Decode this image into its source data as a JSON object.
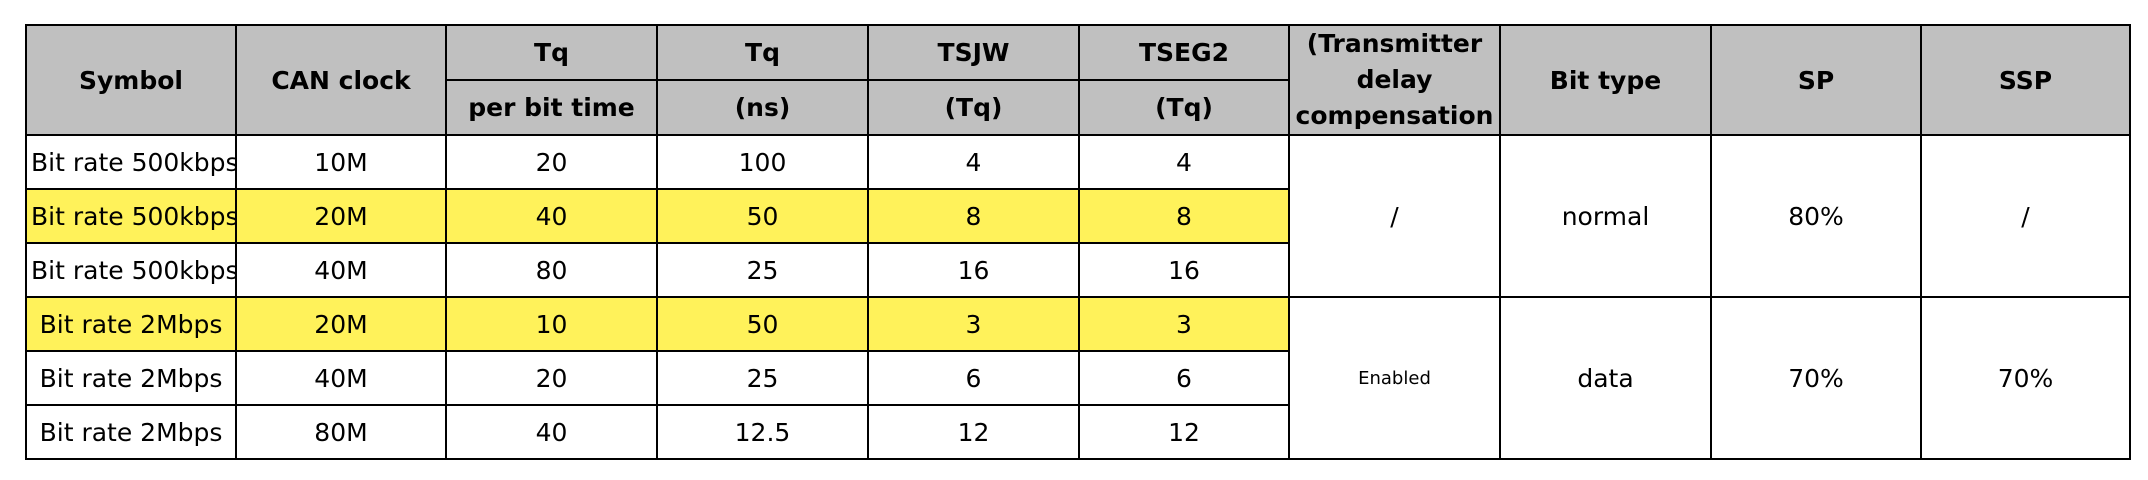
{
  "header": {
    "symbol": "Symbol",
    "can_clock": "CAN clock",
    "tq_top": "Tq",
    "tq_bottom": "per bit time",
    "tqns_top": "Tq",
    "tqns_bottom": "(ns)",
    "tsjw_top": "TSJW",
    "tsjw_bottom": "(Tq)",
    "tseg2_top": "TSEG2",
    "tseg2_bottom": "(Tq)",
    "tdc_line1": "(Transmitter",
    "tdc_line2": "delay",
    "tdc_line3": "compensation",
    "bit_type": "Bit type",
    "sp": "SP",
    "ssp": "SSP"
  },
  "rows": [
    {
      "symbol": "Bit rate 500kbps",
      "clock": "10M",
      "tq": "20",
      "ns": "100",
      "tsjw": "4",
      "tseg2": "4"
    },
    {
      "symbol": "Bit rate 500kbps",
      "clock": "20M",
      "tq": "40",
      "ns": "50",
      "tsjw": "8",
      "tseg2": "8"
    },
    {
      "symbol": "Bit rate 500kbps",
      "clock": "40M",
      "tq": "80",
      "ns": "25",
      "tsjw": "16",
      "tseg2": "16"
    },
    {
      "symbol": "Bit rate 2Mbps",
      "clock": "20M",
      "tq": "10",
      "ns": "50",
      "tsjw": "3",
      "tseg2": "3"
    },
    {
      "symbol": "Bit rate 2Mbps",
      "clock": "40M",
      "tq": "20",
      "ns": "25",
      "tsjw": "6",
      "tseg2": "6"
    },
    {
      "symbol": "Bit rate 2Mbps",
      "clock": "80M",
      "tq": "40",
      "ns": "12.5",
      "tsjw": "12",
      "tseg2": "12"
    }
  ],
  "groups": [
    {
      "tdc": "/",
      "bit_type": "normal",
      "sp": "80%",
      "ssp": "/"
    },
    {
      "tdc": "Enabled",
      "bit_type": "data",
      "sp": "70%",
      "ssp": "70%"
    }
  ],
  "colors": {
    "header_bg": "#c0c0c0",
    "highlight": "#fff25a"
  }
}
